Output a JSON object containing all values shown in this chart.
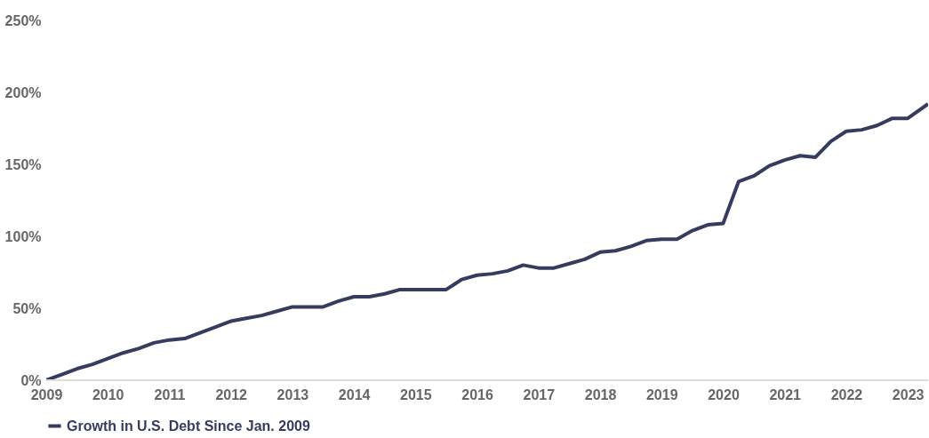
{
  "chart_data": {
    "type": "line",
    "x": [
      2009,
      2009.25,
      2009.5,
      2009.75,
      2010,
      2010.25,
      2010.5,
      2010.75,
      2011,
      2011.25,
      2011.5,
      2011.75,
      2012,
      2012.25,
      2012.5,
      2012.75,
      2013,
      2013.25,
      2013.5,
      2013.75,
      2014,
      2014.25,
      2014.5,
      2014.75,
      2015,
      2015.25,
      2015.5,
      2015.75,
      2016,
      2016.25,
      2016.5,
      2016.75,
      2017,
      2017.25,
      2017.5,
      2017.75,
      2018,
      2018.25,
      2018.5,
      2018.75,
      2019,
      2019.25,
      2019.5,
      2019.75,
      2020,
      2020.25,
      2020.5,
      2020.75,
      2021,
      2021.25,
      2021.5,
      2021.75,
      2022,
      2022.25,
      2022.5,
      2022.75,
      2023,
      2023.33
    ],
    "series": [
      {
        "name": "Growth in U.S. Debt Since Jan. 2009",
        "color": "#353c5e",
        "values": [
          0,
          4,
          8,
          11,
          15,
          19,
          22,
          26,
          28,
          29,
          33,
          37,
          41,
          43,
          45,
          48,
          51,
          51,
          51,
          55,
          58,
          58,
          60,
          63,
          63,
          63,
          63,
          70,
          73,
          74,
          76,
          80,
          78,
          78,
          81,
          84,
          89,
          90,
          93,
          97,
          98,
          98,
          104,
          108,
          109,
          138,
          142,
          149,
          153,
          156,
          155,
          166,
          173,
          174,
          177,
          182,
          182,
          192
        ]
      }
    ],
    "xlim": [
      2009,
      2023.33
    ],
    "xticks": [
      2009,
      2010,
      2011,
      2012,
      2013,
      2014,
      2015,
      2016,
      2017,
      2018,
      2019,
      2020,
      2021,
      2022,
      2023
    ],
    "ylim": [
      0,
      250
    ],
    "yticks": [
      {
        "value": 0,
        "label": "0%"
      },
      {
        "value": 50,
        "label": "50%"
      },
      {
        "value": 100,
        "label": "100%"
      },
      {
        "value": 150,
        "label": "150%"
      },
      {
        "value": 200,
        "label": "200%"
      },
      {
        "value": 250,
        "label": "250%"
      }
    ],
    "grid": false,
    "legend": "bottom",
    "marker": "none",
    "line_style": "solid"
  }
}
